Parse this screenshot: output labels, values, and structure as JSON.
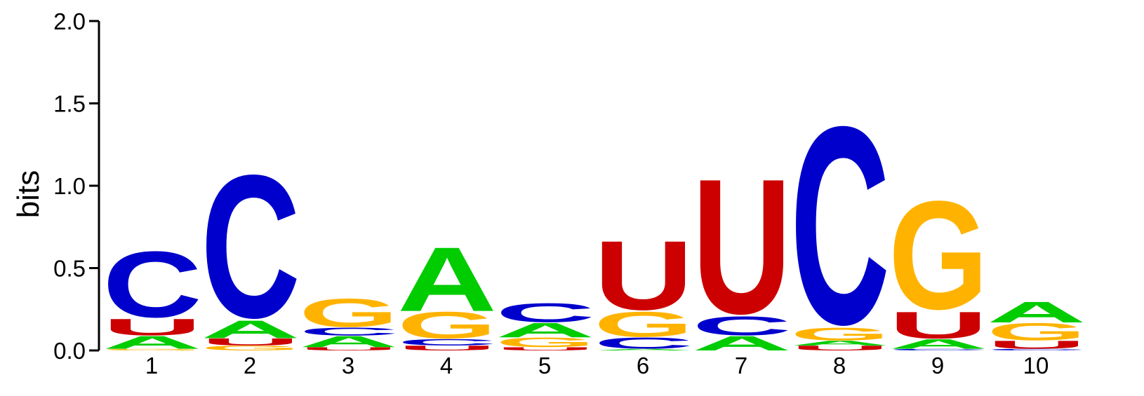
{
  "chart_data": {
    "type": "sequence-logo",
    "ylabel": "bits",
    "ylim": [
      0,
      2
    ],
    "yticks": [
      "0.0",
      "0.5",
      "1.0",
      "1.5",
      "2.0"
    ],
    "grid": false,
    "positions": [
      "1",
      "2",
      "3",
      "4",
      "5",
      "6",
      "7",
      "8",
      "9",
      "10"
    ],
    "colors": {
      "A": "#00cc00",
      "C": "#0000cc",
      "G": "#ffb300",
      "U": "#cc0000"
    },
    "stacks": [
      [
        {
          "letter": "G",
          "bits": 0.01
        },
        {
          "letter": "A",
          "bits": 0.08
        },
        {
          "letter": "U",
          "bits": 0.105
        },
        {
          "letter": "C",
          "bits": 0.42
        }
      ],
      [
        {
          "letter": "G",
          "bits": 0.03
        },
        {
          "letter": "U",
          "bits": 0.045
        },
        {
          "letter": "A",
          "bits": 0.11
        },
        {
          "letter": "C",
          "bits": 0.91
        }
      ],
      [
        {
          "letter": "U",
          "bits": 0.02
        },
        {
          "letter": "A",
          "bits": 0.07
        },
        {
          "letter": "C",
          "bits": 0.05
        },
        {
          "letter": "G",
          "bits": 0.18
        }
      ],
      [
        {
          "letter": "U",
          "bits": 0.03
        },
        {
          "letter": "C",
          "bits": 0.04
        },
        {
          "letter": "G",
          "bits": 0.17
        },
        {
          "letter": "A",
          "bits": 0.4
        }
      ],
      [
        {
          "letter": "U",
          "bits": 0.02
        },
        {
          "letter": "G",
          "bits": 0.06
        },
        {
          "letter": "A",
          "bits": 0.09
        },
        {
          "letter": "C",
          "bits": 0.12
        }
      ],
      [
        {
          "letter": "A",
          "bits": 0.01
        },
        {
          "letter": "C",
          "bits": 0.07
        },
        {
          "letter": "G",
          "bits": 0.16
        },
        {
          "letter": "U",
          "bits": 0.44
        }
      ],
      [
        {
          "letter": "A",
          "bits": 0.09
        },
        {
          "letter": "C",
          "bits": 0.12
        },
        {
          "letter": "U",
          "bits": 0.86
        }
      ],
      [
        {
          "letter": "U",
          "bits": 0.03
        },
        {
          "letter": "A",
          "bits": 0.03
        },
        {
          "letter": "G",
          "bits": 0.08
        },
        {
          "letter": "C",
          "bits": 1.26
        }
      ],
      [
        {
          "letter": "C",
          "bits": 0.01
        },
        {
          "letter": "A",
          "bits": 0.06
        },
        {
          "letter": "U",
          "bits": 0.17
        },
        {
          "letter": "G",
          "bits": 0.69
        }
      ],
      [
        {
          "letter": "C",
          "bits": 0.01
        },
        {
          "letter": "U",
          "bits": 0.05
        },
        {
          "letter": "G",
          "bits": 0.11
        },
        {
          "letter": "A",
          "bits": 0.13
        }
      ]
    ]
  }
}
